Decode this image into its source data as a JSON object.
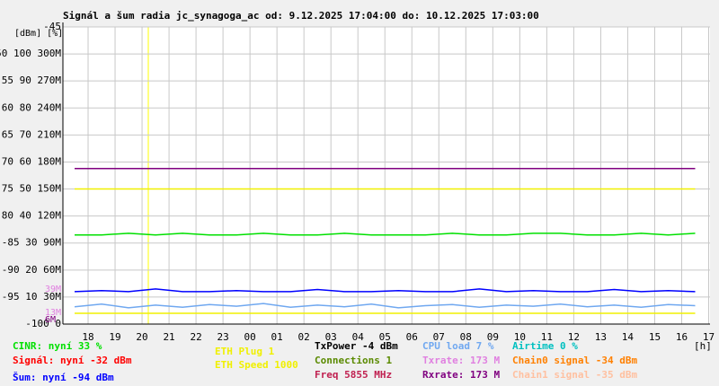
{
  "chart_data": {
    "type": "line",
    "title": "Signál a šum radia jc_synagoga_ac od: 9.12.2025 17:04:00 do: 10.12.2025 17:03:00",
    "y_label": "[dBm] [%]",
    "x_label": "[h]",
    "grid": true,
    "xlim": [
      17.067,
      41.05
    ],
    "xticks": [
      18,
      19,
      20,
      21,
      22,
      23,
      {
        "value": 24,
        "label": "00"
      },
      {
        "value": 25,
        "label": "01"
      },
      {
        "value": 26,
        "label": "02"
      },
      {
        "value": 27,
        "label": "03"
      },
      {
        "value": 28,
        "label": "04"
      },
      {
        "value": 29,
        "label": "05"
      },
      {
        "value": 30,
        "label": "06"
      },
      {
        "value": 31,
        "label": "07"
      },
      {
        "value": 32,
        "label": "08"
      },
      {
        "value": 33,
        "label": "09"
      },
      {
        "value": 34,
        "label": "10"
      },
      {
        "value": 35,
        "label": "11"
      },
      {
        "value": 36,
        "label": "12"
      },
      {
        "value": 37,
        "label": "13"
      },
      {
        "value": 38,
        "label": "14"
      },
      {
        "value": 39,
        "label": "15"
      },
      {
        "value": 40,
        "label": "16"
      },
      {
        "value": 41,
        "label": "17"
      }
    ],
    "ylim": [
      -100,
      -45
    ],
    "yticks": [
      -45,
      {
        "value": -50,
        "label": "-50 100 300M"
      },
      {
        "value": -55,
        "label": "-55 90 270M"
      },
      {
        "value": -60,
        "label": "-60 80 240M"
      },
      {
        "value": -65,
        "label": "-65 70 210M"
      },
      {
        "value": -70,
        "label": "-70 60 180M"
      },
      {
        "value": -75,
        "label": "-75 50 150M"
      },
      {
        "value": -80,
        "label": "-80 40 120M"
      },
      {
        "value": -85,
        "label": "-85 30 90M"
      },
      {
        "value": -90,
        "label": "-90 20 60M"
      },
      {
        "value": -95,
        "label": "-95 10 30M"
      },
      {
        "value": -100,
        "label": "-100 0"
      }
    ],
    "x": [
      17.5,
      18.5,
      19.5,
      20.5,
      21.5,
      22.5,
      23.5,
      24.5,
      25.5,
      26.5,
      27.5,
      28.5,
      29.5,
      30.5,
      31.5,
      32.5,
      33.5,
      34.5,
      35.5,
      36.5,
      37.5,
      38.5,
      39.5,
      40.5
    ],
    "series": [
      {
        "name": "CINR: nyní 33 %",
        "color": "#00e000",
        "values": [
          -83.5,
          -83.5,
          -83.2,
          -83.5,
          -83.2,
          -83.5,
          -83.5,
          -83.2,
          -83.5,
          -83.5,
          -83.2,
          -83.5,
          -83.5,
          -83.5,
          -83.2,
          -83.5,
          -83.5,
          -83.2,
          -83.2,
          -83.5,
          -83.5,
          -83.2,
          -83.5,
          -83.2
        ]
      },
      {
        "name": "Šum: nyní -94 dBm",
        "color": "#0000ff",
        "values": [
          -94,
          -93.8,
          -94,
          -93.5,
          -94,
          -94,
          -93.8,
          -94,
          -94,
          -93.6,
          -94,
          -94,
          -93.8,
          -94,
          -94,
          -93.5,
          -94,
          -93.8,
          -94,
          -94,
          -93.6,
          -94,
          -93.8,
          -94
        ]
      },
      {
        "name": "CPU load 7 %",
        "color": "#70a8f0",
        "values": [
          -96.8,
          -96.3,
          -97,
          -96.5,
          -96.9,
          -96.4,
          -96.7,
          -96.2,
          -96.9,
          -96.5,
          -96.8,
          -96.3,
          -97,
          -96.6,
          -96.4,
          -96.9,
          -96.5,
          -96.7,
          -96.3,
          -96.8,
          -96.5,
          -96.9,
          -96.4,
          -96.6
        ]
      },
      {
        "name": "Rxrate: 173 M",
        "color": "#800080",
        "values": [
          -71.2,
          -71.2,
          -71.2,
          -71.2,
          -71.2,
          -71.2,
          -71.2,
          -71.2,
          -71.2,
          -71.2,
          -71.2,
          -71.2,
          -71.2,
          -71.2,
          -71.2,
          -71.2,
          -71.2,
          -71.2,
          -71.2,
          -71.2,
          -71.2,
          -71.2,
          -71.2,
          -71.2
        ]
      },
      {
        "name": "ETH Speed 1000",
        "color": "#f0f000",
        "values": [
          -75,
          -75,
          -75,
          -75,
          -75,
          -75,
          -75,
          -75,
          -75,
          -75,
          -75,
          -75,
          -75,
          -75,
          -75,
          -75,
          -75,
          -75,
          -75,
          -75,
          -75,
          -75,
          -75,
          -75
        ]
      },
      {
        "name": "ETH Plug 1",
        "color": "#f0f000",
        "values": [
          -98,
          -98,
          -98,
          -98,
          -98,
          -98,
          -98,
          -98,
          -98,
          -98,
          -98,
          -98,
          -98,
          -98,
          -98,
          -98,
          -98,
          -98,
          -98,
          -98,
          -98,
          -98,
          -98,
          -98
        ]
      }
    ],
    "legend_extra": [
      {
        "text": "Signál: nyní -32 dBm",
        "color": "#ff0000"
      },
      {
        "text": "TxPower -4 dBm",
        "color": "#000000"
      },
      {
        "text": "Connections 1",
        "color": "#5a8a00"
      },
      {
        "text": "Freq 5855 MHz",
        "color": "#c02050"
      },
      {
        "text": "Txrate: 173 M",
        "color": "#e080e0"
      },
      {
        "text": "Airtime 0 %",
        "color": "#00c0c0"
      },
      {
        "text": "Chain0 signal -34 dBm",
        "color": "#ff8000"
      },
      {
        "text": "Chain1 signal -35 dBm",
        "color": "#ffc0a0"
      }
    ],
    "annotations": [
      {
        "text": "39M",
        "color": "#e080e0"
      },
      {
        "text": "13M",
        "color": "#e080e0"
      },
      {
        "text": "6M",
        "color": "#800080"
      }
    ]
  }
}
